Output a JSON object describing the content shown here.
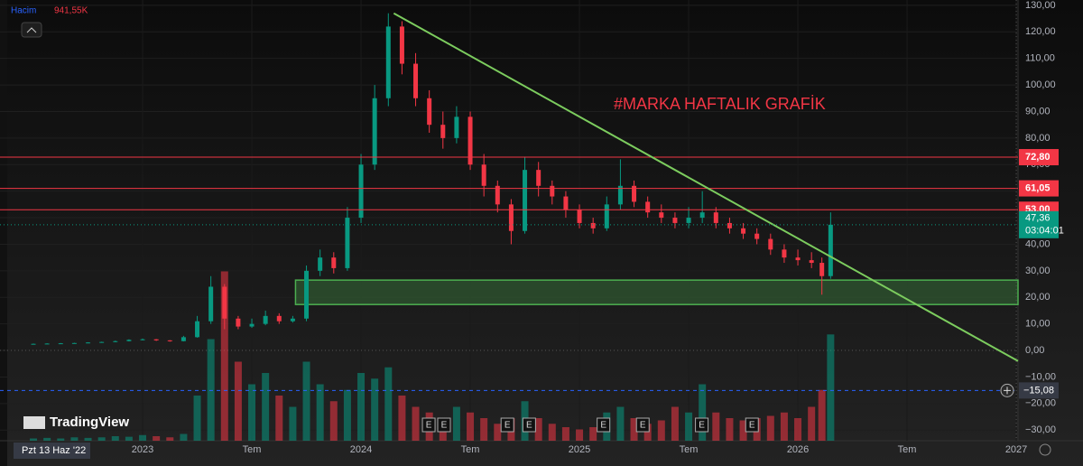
{
  "chart_data": {
    "type": "candlestick",
    "title": "#MARKA HAFTALIK GRAFİK",
    "x": [
      2022.5,
      2022.5625,
      2022.625,
      2022.6875,
      2022.75,
      2022.8125,
      2022.875,
      2022.9375,
      2023.0,
      2023.0625,
      2023.125,
      2023.1875,
      2023.25,
      2023.3125,
      2023.375,
      2023.4375,
      2023.5,
      2023.5625,
      2023.625,
      2023.6875,
      2023.75,
      2023.8125,
      2023.875,
      2023.9375,
      2024.0,
      2024.0625,
      2024.125,
      2024.1875,
      2024.25,
      2024.3125,
      2024.375,
      2024.4375,
      2024.5,
      2024.5625,
      2024.625,
      2024.6875,
      2024.75,
      2024.8125,
      2024.875,
      2024.9375,
      2025.0,
      2025.0625,
      2025.125,
      2025.1875,
      2025.25,
      2025.3125,
      2025.375,
      2025.4375,
      2025.5,
      2025.5625,
      2025.625,
      2025.6875,
      2025.75,
      2025.8125,
      2025.875,
      2025.9375,
      2026.0,
      2026.0625,
      2026.11,
      2026.15
    ],
    "open": [
      2.4,
      2.5,
      2.6,
      2.7,
      2.8,
      3.0,
      3.2,
      3.5,
      4.0,
      4.2,
      3.8,
      3.5,
      5.0,
      11,
      24,
      12,
      9,
      10,
      13,
      11,
      12,
      30,
      35,
      31,
      50,
      70,
      95,
      122,
      108,
      95,
      85,
      80,
      88,
      70,
      62,
      55,
      45,
      68,
      62,
      58,
      53,
      48,
      46,
      55,
      62,
      56,
      52,
      50,
      48,
      50,
      52,
      48,
      46,
      44,
      42,
      38,
      35,
      34,
      33,
      28
    ],
    "high": [
      2.6,
      2.7,
      2.8,
      2.9,
      3.1,
      3.3,
      3.7,
      4.2,
      4.5,
      4.3,
      3.9,
      5.5,
      13,
      28,
      25,
      13,
      12,
      15,
      14,
      13,
      32,
      38,
      37,
      54,
      74,
      100,
      127,
      124,
      112,
      98,
      90,
      92,
      90,
      74,
      64,
      57,
      73,
      71,
      64,
      60,
      55,
      50,
      58,
      72,
      64,
      58,
      55,
      52,
      54,
      60,
      54,
      50,
      48,
      46,
      44,
      40,
      38,
      37,
      35,
      52
    ],
    "low": [
      2.3,
      2.4,
      2.5,
      2.6,
      2.7,
      2.9,
      3.1,
      3.4,
      3.8,
      3.6,
      3.3,
      3.4,
      4.8,
      10,
      8,
      8,
      8.5,
      9.5,
      10,
      10.5,
      11,
      28,
      29,
      30,
      48,
      68,
      92,
      104,
      92,
      82,
      76,
      78,
      68,
      58,
      52,
      40,
      44,
      58,
      55,
      50,
      46,
      44,
      45,
      53,
      54,
      50,
      48,
      46,
      46,
      48,
      46,
      44,
      42,
      40,
      36,
      33,
      32,
      31,
      21,
      27
    ],
    "close": [
      2.5,
      2.6,
      2.7,
      2.8,
      3.0,
      3.2,
      3.5,
      4.0,
      4.2,
      3.8,
      3.5,
      5.0,
      11,
      24,
      12,
      9,
      10,
      13,
      11,
      12,
      30,
      35,
      31,
      50,
      70,
      95,
      122,
      108,
      95,
      85,
      80,
      88,
      70,
      62,
      55,
      45,
      68,
      62,
      58,
      53,
      48,
      46,
      55,
      62,
      56,
      52,
      50,
      48,
      50,
      52,
      48,
      46,
      44,
      42,
      38,
      35,
      34,
      33,
      28,
      47.36
    ],
    "volume": [
      20,
      25,
      20,
      30,
      25,
      30,
      40,
      35,
      50,
      40,
      30,
      60,
      400,
      900,
      1500,
      700,
      500,
      600,
      400,
      300,
      700,
      500,
      350,
      450,
      600,
      550,
      650,
      400,
      300,
      250,
      200,
      300,
      250,
      200,
      150,
      200,
      350,
      200,
      150,
      120,
      100,
      120,
      250,
      300,
      200,
      150,
      180,
      300,
      250,
      500,
      250,
      200,
      180,
      200,
      220,
      250,
      200,
      300,
      450,
      941.55
    ],
    "volume_lim": [
      0,
      1600
    ],
    "up_color": "#089981",
    "down_color": "#f23645",
    "xlim": [
      2022.347,
      2027.008
    ],
    "ylim": [
      -34,
      132
    ],
    "yticks": [
      {
        "value": 130,
        "label": "130,00"
      },
      {
        "value": 120,
        "label": "120,00"
      },
      {
        "value": 110,
        "label": "110,00"
      },
      {
        "value": 100,
        "label": "100,00"
      },
      {
        "value": 90,
        "label": "90,00"
      },
      {
        "value": 80,
        "label": "80,00"
      },
      {
        "value": 70,
        "label": "70,00"
      },
      {
        "value": 60,
        "label": "60,00"
      },
      {
        "value": 50,
        "label": "50,00"
      },
      {
        "value": 40,
        "label": "40,00"
      },
      {
        "value": 30,
        "label": "30,00"
      },
      {
        "value": 20,
        "label": "20,00"
      },
      {
        "value": 10,
        "label": "10,00"
      },
      {
        "value": 0,
        "label": "0,00"
      },
      {
        "value": -10,
        "label": "−10,00"
      },
      {
        "value": -20,
        "label": "−20,00"
      },
      {
        "value": -30,
        "label": "−30,00"
      }
    ],
    "xticks": [
      {
        "value": 2023,
        "label": "2023"
      },
      {
        "value": 2023.5,
        "label": "Tem"
      },
      {
        "value": 2024,
        "label": "2024"
      },
      {
        "value": 2024.5,
        "label": "Tem"
      },
      {
        "value": 2025,
        "label": "2025"
      },
      {
        "value": 2025.5,
        "label": "Tem"
      },
      {
        "value": 2026,
        "label": "2026"
      },
      {
        "value": 2026.5,
        "label": "Tem"
      },
      {
        "value": 2027,
        "label": "2027"
      }
    ],
    "levels": [
      {
        "value": 72.8,
        "label": "72,80"
      },
      {
        "value": 61.05,
        "label": "61,05"
      },
      {
        "value": 53,
        "label": "53,00"
      }
    ],
    "level_color": "#f23645",
    "last_price": {
      "value": 47.36,
      "label": "47,36",
      "countdown": "03:04:01"
    },
    "crosshair": {
      "value": -15.08,
      "label": "−15,08",
      "date": "Pzt 13 Haz '22"
    },
    "zone": {
      "x_start": 2023.7,
      "low": 17.3,
      "high": 26.5,
      "color": "#4caf50"
    },
    "trendline": {
      "points": [
        [
          2024.15,
          127
        ],
        [
          2027.008,
          -4
        ]
      ],
      "color": "#7ccc5e"
    },
    "events": [
      {
        "x": 2024.31,
        "label": "E"
      },
      {
        "x": 2024.38,
        "label": "E"
      },
      {
        "x": 2024.67,
        "label": "E"
      },
      {
        "x": 2024.77,
        "label": "E"
      },
      {
        "x": 2025.11,
        "label": "E"
      },
      {
        "x": 2025.29,
        "label": "E"
      },
      {
        "x": 2025.56,
        "label": "E"
      },
      {
        "x": 2025.79,
        "label": "E"
      }
    ],
    "volume_legend": {
      "name": "Hacim",
      "value": "941,55K"
    },
    "logo": "TradingView"
  }
}
